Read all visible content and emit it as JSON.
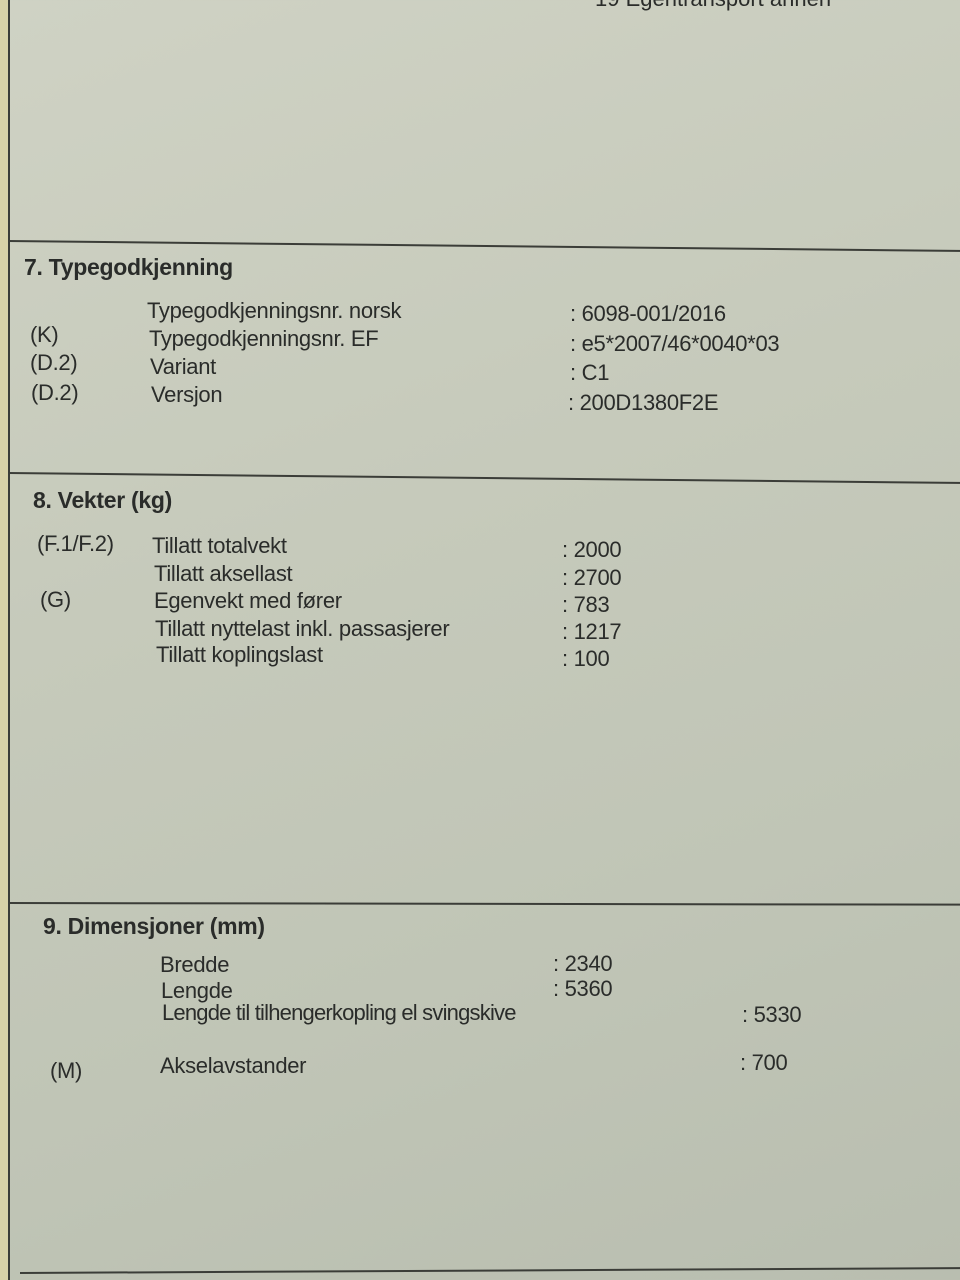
{
  "top_fragment": "19 Egentransport annen",
  "sections": [
    {
      "title": "7. Typegodkjenning",
      "rows": [
        {
          "code": "",
          "label": "Typegodkjenningsnr. norsk",
          "value": "6098-001/2016"
        },
        {
          "code": "(K)",
          "label": "Typegodkjenningsnr. EF",
          "value": "e5*2007/46*0040*03"
        },
        {
          "code": "(D.2)",
          "label": "Variant",
          "value": "C1"
        },
        {
          "code": "(D.2)",
          "label": "Versjon",
          "value": "200D1380F2E"
        }
      ]
    },
    {
      "title": "8. Vekter (kg)",
      "rows": [
        {
          "code": "(F.1/F.2)",
          "label": "Tillatt totalvekt",
          "value": "2000"
        },
        {
          "code": "",
          "label": "Tillatt aksellast",
          "value": "2700"
        },
        {
          "code": "(G)",
          "label": "Egenvekt med fører",
          "value": "783"
        },
        {
          "code": "",
          "label": "Tillatt nyttelast inkl. passasjerer",
          "value": "1217"
        },
        {
          "code": "",
          "label": "Tillatt koplingslast",
          "value": "100"
        }
      ]
    },
    {
      "title": "9. Dimensjoner (mm)",
      "rows": [
        {
          "code": "",
          "label": "Bredde",
          "value": "2340"
        },
        {
          "code": "",
          "label": "Lengde",
          "value": "5360"
        },
        {
          "code": "",
          "label": "Lengde til tilhengerkopling el svingskive",
          "value": "5330"
        },
        {
          "code": "(M)",
          "label": "Akselavstander",
          "value": "700"
        }
      ]
    }
  ]
}
